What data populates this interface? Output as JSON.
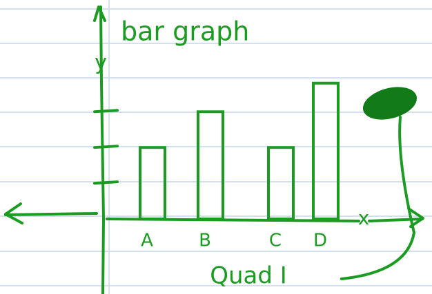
{
  "chart_data": {
    "type": "bar",
    "title": "bar graph",
    "y_label": "y",
    "x_label": "x",
    "annotation": "Quad I",
    "categories": [
      "A",
      "B",
      "C",
      "D"
    ],
    "values": [
      2,
      3,
      2,
      3.8
    ],
    "color": "#1c9b22",
    "ylim": [
      0,
      4.2
    ],
    "yticks": [
      1,
      2,
      3
    ],
    "grid": false
  }
}
